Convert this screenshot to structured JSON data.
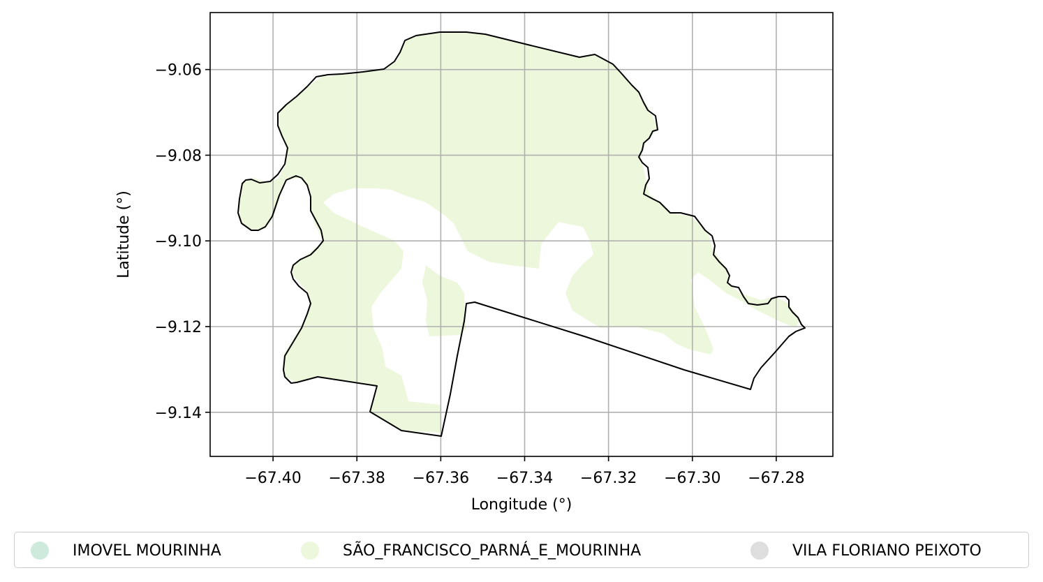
{
  "map": {
    "x_axis": {
      "label": "Longitude (°)",
      "ticks": [
        {
          "value": -67.4,
          "label": "−67.40"
        },
        {
          "value": -67.38,
          "label": "−67.38"
        },
        {
          "value": -67.36,
          "label": "−67.36"
        },
        {
          "value": -67.34,
          "label": "−67.34"
        },
        {
          "value": -67.32,
          "label": "−67.32"
        },
        {
          "value": -67.3,
          "label": "−67.30"
        },
        {
          "value": -67.28,
          "label": "−67.28"
        }
      ],
      "range": [
        -67.415,
        -67.2665
      ]
    },
    "y_axis": {
      "label": "Latitude (°)",
      "ticks": [
        {
          "value": -9.06,
          "label": "−9.06"
        },
        {
          "value": -9.08,
          "label": "−9.08"
        },
        {
          "value": -9.1,
          "label": "−9.10"
        },
        {
          "value": -9.12,
          "label": "−9.12"
        },
        {
          "value": -9.14,
          "label": "−9.14"
        }
      ],
      "range": [
        -9.1503,
        -9.0467
      ]
    },
    "grid": true,
    "boundary_color": "#000000",
    "fill_color": "#edf7dc"
  },
  "legend": {
    "placement": "bottom",
    "items": [
      {
        "label": "IMOVEL MOURINHA",
        "color": "#cdeadc"
      },
      {
        "label": "SÃO_FRANCISCO_PARNÁ_E_MOURINHA",
        "color": "#edf7dc"
      },
      {
        "label": "VILA FLORIANO PEIXOTO",
        "color": "#dedede"
      }
    ]
  }
}
